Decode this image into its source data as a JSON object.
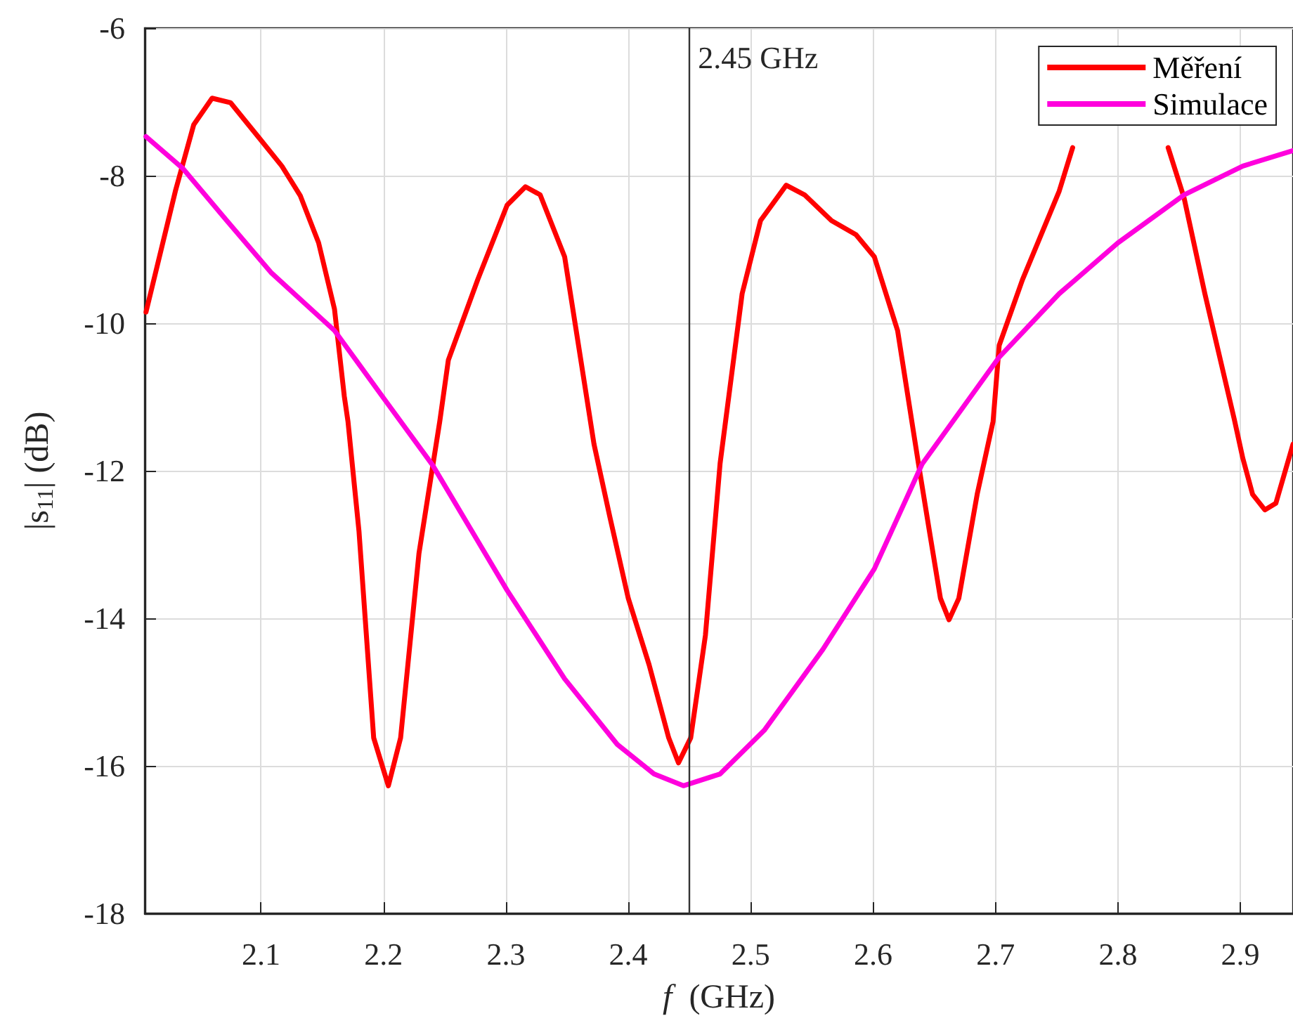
{
  "chart_data": {
    "type": "line",
    "xlabel": "f  (GHz)",
    "ylabel": "|s$_{11}$| (dB)",
    "xlim": [
      2.005,
      2.943
    ],
    "xticks": [
      2.1,
      2.2,
      2.3,
      2.4,
      2.5,
      2.6,
      2.7,
      2.8,
      2.9
    ],
    "ylim": [
      -18,
      -6
    ],
    "yticks": [
      -18,
      -16,
      -14,
      -12,
      -10,
      -8,
      -6
    ],
    "grid": true,
    "legend": "top right",
    "marker": "none",
    "line_style": "solid",
    "ref_lines": [
      {
        "axis": "x",
        "value": 2.45,
        "label": "2.45 GHz",
        "color": "#333333"
      }
    ],
    "series": [
      {
        "name": "Měření",
        "color": "#ff0000",
        "x": [
          2.006,
          2.03,
          2.045,
          2.06,
          2.075,
          2.099,
          2.117,
          2.132,
          2.147,
          2.16,
          2.168,
          2.171,
          2.18,
          2.192,
          2.204,
          2.214,
          2.229,
          2.246,
          2.253,
          2.277,
          2.301,
          2.316,
          2.328,
          2.348,
          2.372,
          2.385,
          2.4,
          2.417,
          2.433,
          2.441,
          2.451,
          2.463,
          2.475,
          2.493,
          2.508,
          2.529,
          2.544,
          2.566,
          2.586,
          2.601,
          2.62,
          2.637,
          2.646,
          2.655,
          2.662,
          2.67,
          2.685,
          2.698,
          2.703,
          2.722,
          2.752,
          2.763,
          2.8,
          2.841,
          2.854,
          2.871,
          2.895,
          2.902,
          2.91,
          2.92,
          2.929,
          2.943
        ],
        "values": [
          -9.85,
          -8.21,
          -7.31,
          -6.95,
          -7.01,
          -7.5,
          -7.87,
          -8.27,
          -8.91,
          -9.81,
          -10.99,
          -11.33,
          -12.82,
          -15.62,
          -16.27,
          -15.62,
          -13.12,
          -11.33,
          -10.5,
          -9.41,
          -8.4,
          -8.15,
          -8.26,
          -9.1,
          -11.64,
          -12.63,
          -13.73,
          -14.63,
          -15.62,
          -15.96,
          -15.62,
          -14.23,
          -11.9,
          -9.6,
          -8.61,
          -8.13,
          -8.26,
          -8.61,
          -8.8,
          -9.1,
          -10.1,
          -11.9,
          -12.82,
          -13.73,
          -14.02,
          -13.73,
          -12.32,
          -11.33,
          -10.3,
          -9.41,
          -8.21,
          -7.62,
          null,
          -7.62,
          -8.3,
          -9.6,
          -11.3,
          -11.83,
          -12.32,
          -12.53,
          -12.44,
          -11.64
        ]
      },
      {
        "name": "Simulace",
        "color": "#ff00dd",
        "x": [
          2.006,
          2.036,
          2.072,
          2.108,
          2.16,
          2.199,
          2.24,
          2.301,
          2.348,
          2.391,
          2.421,
          2.445,
          2.475,
          2.511,
          2.559,
          2.601,
          2.64,
          2.703,
          2.752,
          2.8,
          2.854,
          2.902,
          2.943
        ],
        "values": [
          -7.47,
          -7.9,
          -8.61,
          -9.31,
          -10.1,
          -10.99,
          -11.92,
          -13.62,
          -14.82,
          -15.71,
          -16.11,
          -16.27,
          -16.11,
          -15.52,
          -14.42,
          -13.33,
          -11.91,
          -10.46,
          -9.6,
          -8.91,
          -8.26,
          -7.87,
          -7.66
        ]
      }
    ]
  }
}
